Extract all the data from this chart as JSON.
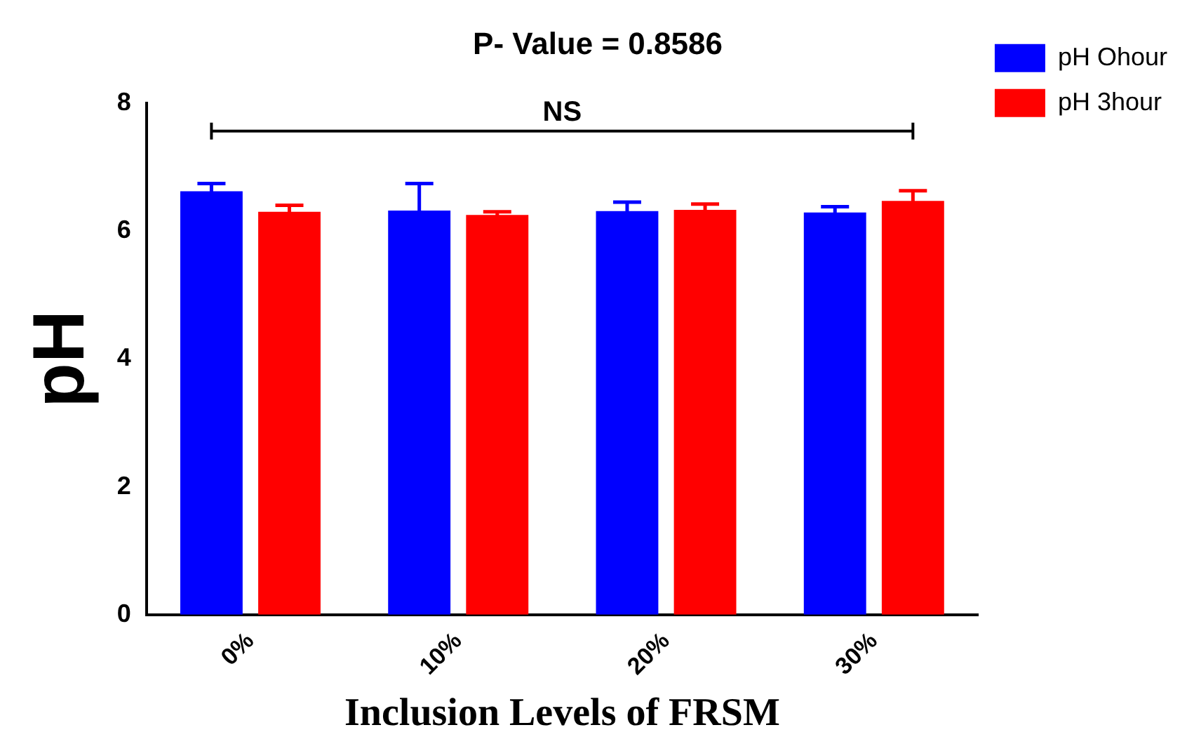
{
  "chart_data": {
    "type": "bar",
    "title": "P- Value = 0.8586",
    "xlabel": "Inclusion Levels of FRSM",
    "ylabel": "pH",
    "categories": [
      "0%",
      "10%",
      "20%",
      "30%"
    ],
    "series": [
      {
        "name": "pH Ohour",
        "color": "#0000ff",
        "values": [
          6.62,
          6.32,
          6.31,
          6.29
        ],
        "errors": [
          0.12,
          0.42,
          0.14,
          0.09
        ]
      },
      {
        "name": "pH 3hour",
        "color": "#ff0000",
        "values": [
          6.3,
          6.25,
          6.33,
          6.47
        ],
        "errors": [
          0.1,
          0.05,
          0.09,
          0.16
        ]
      }
    ],
    "ylim": [
      0,
      8
    ],
    "yticks": [
      0,
      2,
      4,
      6,
      8
    ],
    "grid": false,
    "legend": "top right",
    "annotations": [
      "NS"
    ]
  }
}
